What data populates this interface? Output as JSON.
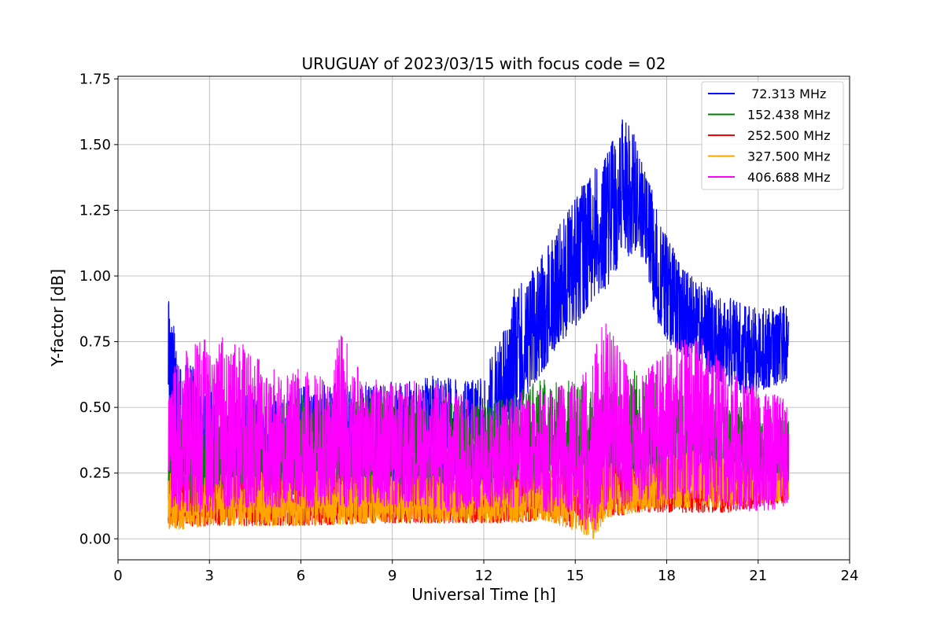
{
  "chart_data": {
    "type": "line",
    "title": "URUGUAY of 2023/03/15 with focus code = 02",
    "xlabel": "Universal Time [h]",
    "ylabel": "Y-factor [dB]",
    "xlim": [
      0,
      24
    ],
    "ylim": [
      -0.08,
      1.76
    ],
    "xticks": [
      0,
      3,
      6,
      9,
      12,
      15,
      18,
      21,
      24
    ],
    "yticks": [
      0.0,
      0.25,
      0.5,
      0.75,
      1.0,
      1.25,
      1.5,
      1.75
    ],
    "ytick_labels": [
      "0.00",
      "0.25",
      "0.50",
      "0.75",
      "1.00",
      "1.25",
      "1.50",
      "1.75"
    ],
    "grid": true,
    "legend_position": "top-right",
    "series": [
      {
        "name": " 72.313 MHz",
        "color": "#0000ff",
        "x": [
          1.65,
          2.0,
          3.0,
          4.0,
          5.0,
          6.0,
          7.0,
          8.0,
          9.0,
          10.0,
          11.0,
          12.0,
          12.5,
          13.0,
          13.5,
          14.0,
          14.5,
          15.0,
          15.5,
          16.0,
          16.5,
          17.0,
          17.3,
          17.6,
          18.0,
          18.5,
          19.0,
          19.5,
          20.0,
          20.5,
          21.0,
          21.5,
          22.0
        ],
        "lo": [
          0.55,
          0.2,
          0.15,
          0.2,
          0.2,
          0.2,
          0.2,
          0.18,
          0.2,
          0.2,
          0.2,
          0.2,
          0.3,
          0.45,
          0.55,
          0.65,
          0.75,
          0.8,
          0.9,
          0.95,
          1.05,
          1.1,
          1.05,
          0.85,
          0.75,
          0.7,
          0.68,
          0.62,
          0.58,
          0.55,
          0.55,
          0.58,
          0.6
        ],
        "hi": [
          0.94,
          0.7,
          0.6,
          0.55,
          0.55,
          0.58,
          0.6,
          0.58,
          0.6,
          0.62,
          0.62,
          0.62,
          0.78,
          0.95,
          1.0,
          1.1,
          1.2,
          1.3,
          1.4,
          1.45,
          1.6,
          1.55,
          1.4,
          1.3,
          1.15,
          1.05,
          1.0,
          0.95,
          0.92,
          0.9,
          0.88,
          0.88,
          0.9
        ]
      },
      {
        "name": "152.438 MHz",
        "color": "#008000",
        "x": [
          1.65,
          3.0,
          6.0,
          9.0,
          12.0,
          13.0,
          14.0,
          15.0,
          16.0,
          17.0,
          18.0,
          19.0,
          20.0,
          21.0,
          22.0
        ],
        "lo": [
          0.1,
          0.1,
          0.12,
          0.12,
          0.15,
          0.15,
          0.18,
          0.15,
          0.15,
          0.2,
          0.2,
          0.2,
          0.18,
          0.18,
          0.2
        ],
        "hi": [
          0.45,
          0.5,
          0.55,
          0.55,
          0.52,
          0.55,
          0.62,
          0.6,
          0.55,
          0.65,
          0.58,
          0.55,
          0.5,
          0.5,
          0.45
        ]
      },
      {
        "name": "252.500 MHz",
        "color": "#ff0000",
        "x": [
          1.65,
          3.0,
          6.0,
          9.0,
          12.0,
          13.0,
          14.0,
          15.0,
          16.0,
          17.0,
          18.0,
          19.0,
          20.0,
          21.0,
          22.0
        ],
        "lo": [
          0.04,
          0.05,
          0.05,
          0.06,
          0.06,
          0.06,
          0.07,
          0.04,
          0.08,
          0.1,
          0.1,
          0.1,
          0.1,
          0.12,
          0.14
        ],
        "hi": [
          0.24,
          0.22,
          0.24,
          0.22,
          0.22,
          0.24,
          0.25,
          0.28,
          0.3,
          0.25,
          0.3,
          0.32,
          0.28,
          0.25,
          0.25
        ]
      },
      {
        "name": "327.500 MHz",
        "color": "#ffa500",
        "x": [
          1.65,
          3.0,
          6.0,
          9.0,
          12.0,
          13.0,
          14.0,
          15.0,
          15.6,
          16.0,
          17.0,
          18.0,
          19.0,
          20.0,
          21.0,
          22.0
        ],
        "lo": [
          0.03,
          0.05,
          0.05,
          0.06,
          0.06,
          0.06,
          0.07,
          0.03,
          0.0,
          0.08,
          0.1,
          0.12,
          0.12,
          0.12,
          0.13,
          0.15
        ],
        "hi": [
          0.25,
          0.25,
          0.26,
          0.24,
          0.24,
          0.25,
          0.26,
          0.28,
          0.3,
          0.3,
          0.26,
          0.32,
          0.34,
          0.3,
          0.28,
          0.26
        ]
      },
      {
        "name": "406.688 MHz",
        "color": "#ff00ff",
        "x": [
          1.65,
          2.0,
          3.0,
          4.0,
          5.0,
          6.0,
          7.0,
          7.3,
          8.0,
          9.0,
          10.0,
          11.0,
          12.0,
          13.0,
          14.0,
          15.0,
          15.5,
          16.0,
          16.5,
          17.0,
          18.0,
          19.0,
          20.0,
          21.0,
          22.0
        ],
        "lo": [
          0.1,
          0.1,
          0.1,
          0.12,
          0.12,
          0.12,
          0.12,
          0.12,
          0.12,
          0.12,
          0.12,
          0.1,
          0.12,
          0.12,
          0.1,
          0.1,
          0.0,
          0.12,
          0.12,
          0.15,
          0.15,
          0.15,
          0.12,
          0.1,
          0.12
        ],
        "hi": [
          0.6,
          0.7,
          0.78,
          0.75,
          0.65,
          0.65,
          0.6,
          0.8,
          0.62,
          0.6,
          0.6,
          0.58,
          0.5,
          0.55,
          0.58,
          0.6,
          0.65,
          0.88,
          0.7,
          0.6,
          0.72,
          0.8,
          0.65,
          0.58,
          0.55
        ]
      }
    ]
  }
}
